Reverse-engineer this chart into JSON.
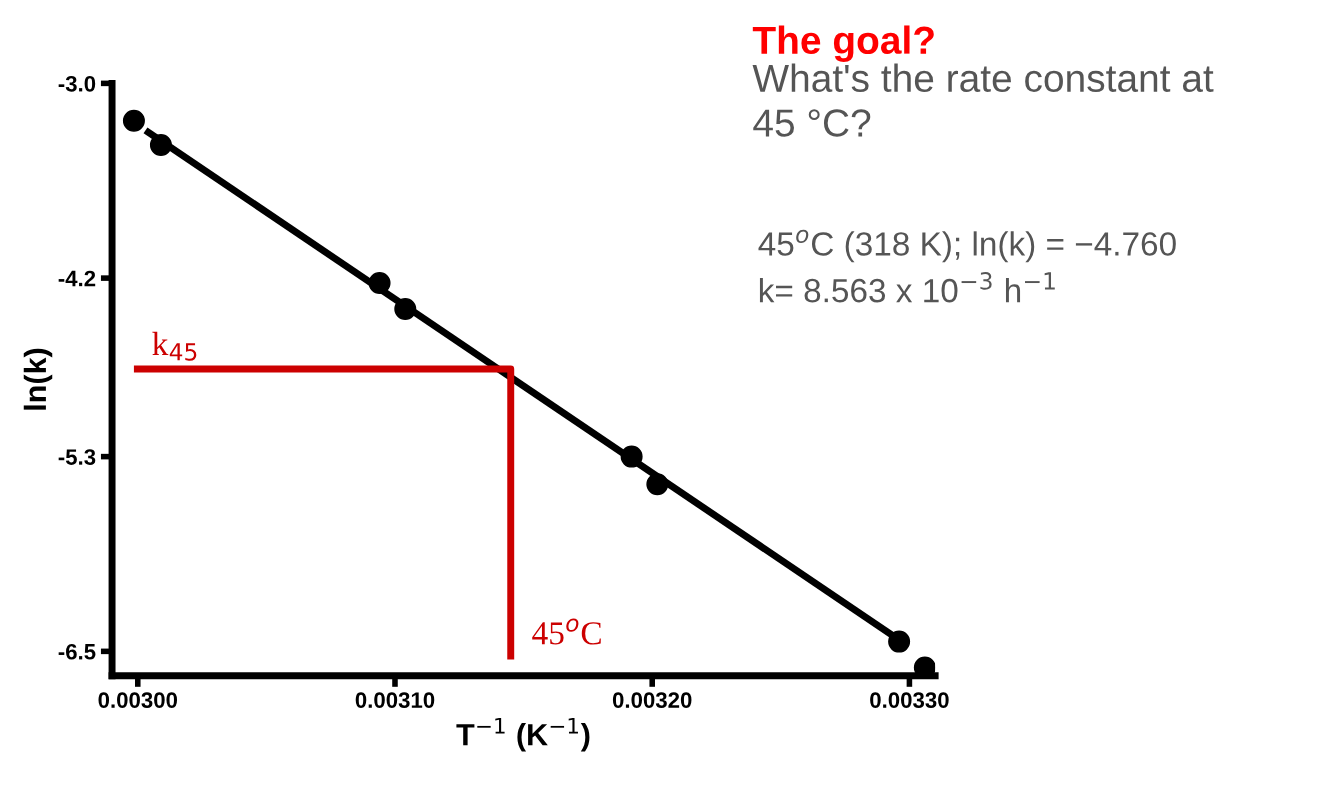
{
  "chart_data": {
    "type": "scatter",
    "title": "The goal?",
    "subtitle": "What's the rate constant at\n45 °C?",
    "xlabel": "T$^{−1}$ (K$^{−1}$)",
    "ylabel": "ln(k)",
    "xlim": [
      0.00299,
      0.00331
    ],
    "ylim": [
      -6.65,
      -3.0
    ],
    "xticks": [
      {
        "value": 0.003,
        "label": "0.00300"
      },
      {
        "value": 0.0031,
        "label": "0.00310"
      },
      {
        "value": 0.0032,
        "label": "0.00320"
      },
      {
        "value": 0.0033,
        "label": "0.00330"
      }
    ],
    "yticks": [
      {
        "value": -3.0,
        "label": "-3.0"
      },
      {
        "value": -4.2,
        "label": "-4.2"
      },
      {
        "value": -5.3,
        "label": "-5.3"
      },
      {
        "value": -6.5,
        "label": "-6.5"
      }
    ],
    "grid": false,
    "legend": false,
    "marker": "circle",
    "series": [
      {
        "color": "#000000",
        "x": [
          0.0029985,
          0.003009,
          0.003094,
          0.003104,
          0.003192,
          0.003202,
          0.003296,
          0.003306
        ],
        "values": [
          -3.23,
          -3.38,
          -4.23,
          -4.39,
          -5.3,
          -5.47,
          -6.44,
          -6.6
        ]
      },
      {
        "type": "line",
        "color": "#000000",
        "marker": "none",
        "x": [
          0.003003,
          0.003297
        ],
        "values": [
          -3.29,
          -6.44
        ]
      },
      {
        "type": "line",
        "color": "#cc0000",
        "marker": "none",
        "x": [
          0.0029985,
          0.003145,
          0.003145
        ],
        "values": [
          -4.76,
          -4.76,
          -6.55
        ]
      }
    ],
    "annotations": [
      {
        "text": "k$_{45}$",
        "x": 0.003,
        "y": -4.76
      },
      {
        "text": "45$^{o}$C",
        "x": 0.003145,
        "y": -6.5
      },
      "45$^{o}$C (318 K); ln(k) = −4.760",
      "k= 8.563 x 10$^{−3}$ h$^{−1}$"
    ]
  }
}
